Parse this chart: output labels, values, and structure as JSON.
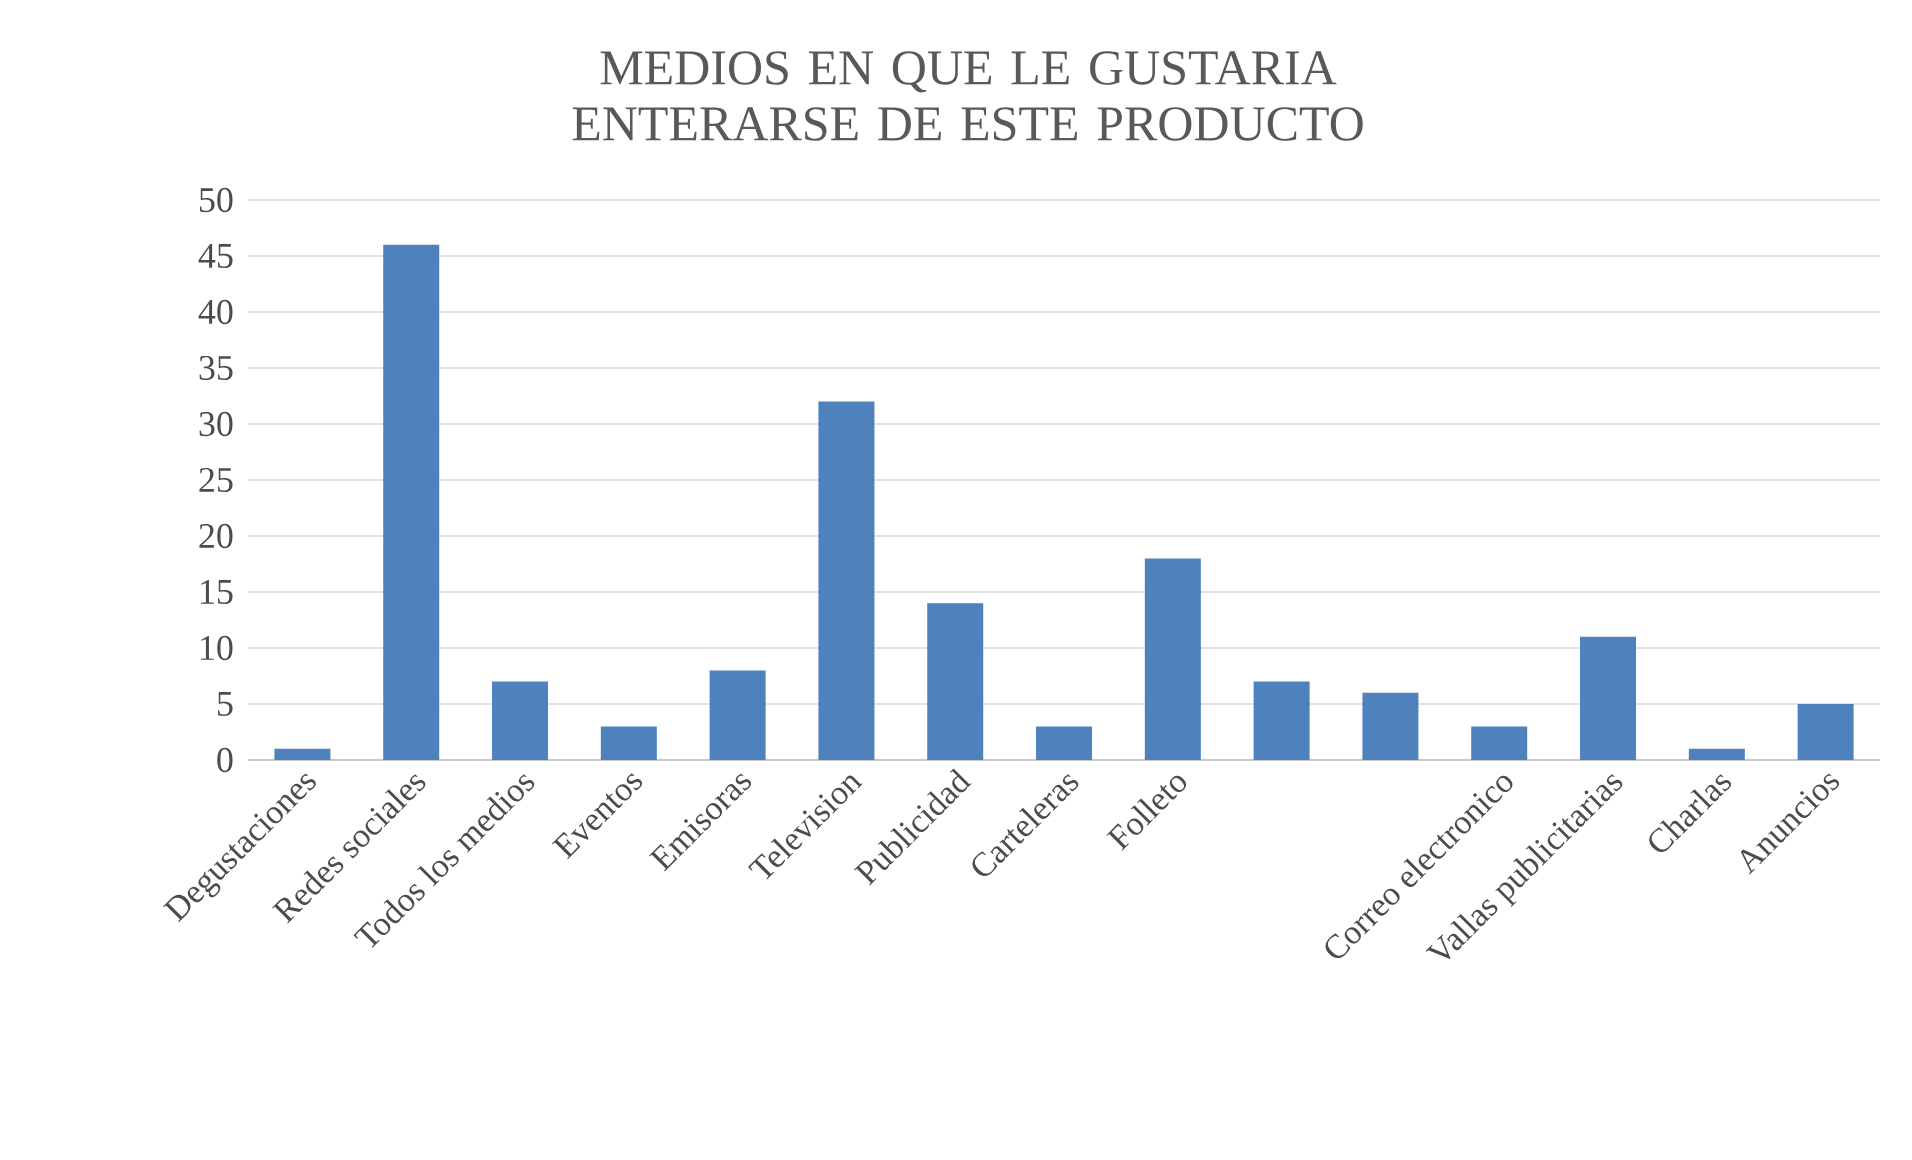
{
  "chart_data": {
    "type": "bar",
    "title": "MEDIOS EN QUE LE GUSTARIA ENTERARSE DE ESTE PRODUCTO",
    "categories": [
      "Degustaciones",
      "Redes sociales",
      "Todos los medios",
      "Eventos",
      "Emisoras",
      "Television",
      "Publicidad",
      "Carteleras",
      "Folleto",
      null,
      null,
      "Correo electronico",
      "Vallas publicitarias",
      "Charlas",
      "Anuncios"
    ],
    "values": [
      1,
      46,
      7,
      3,
      8,
      32,
      14,
      3,
      18,
      7,
      6,
      3,
      11,
      1,
      5
    ],
    "color": "#4f81bd",
    "ylim": [
      0,
      50
    ],
    "yticks": [
      0,
      5,
      10,
      15,
      20,
      25,
      30,
      35,
      40,
      45,
      50
    ],
    "grid": "y"
  }
}
